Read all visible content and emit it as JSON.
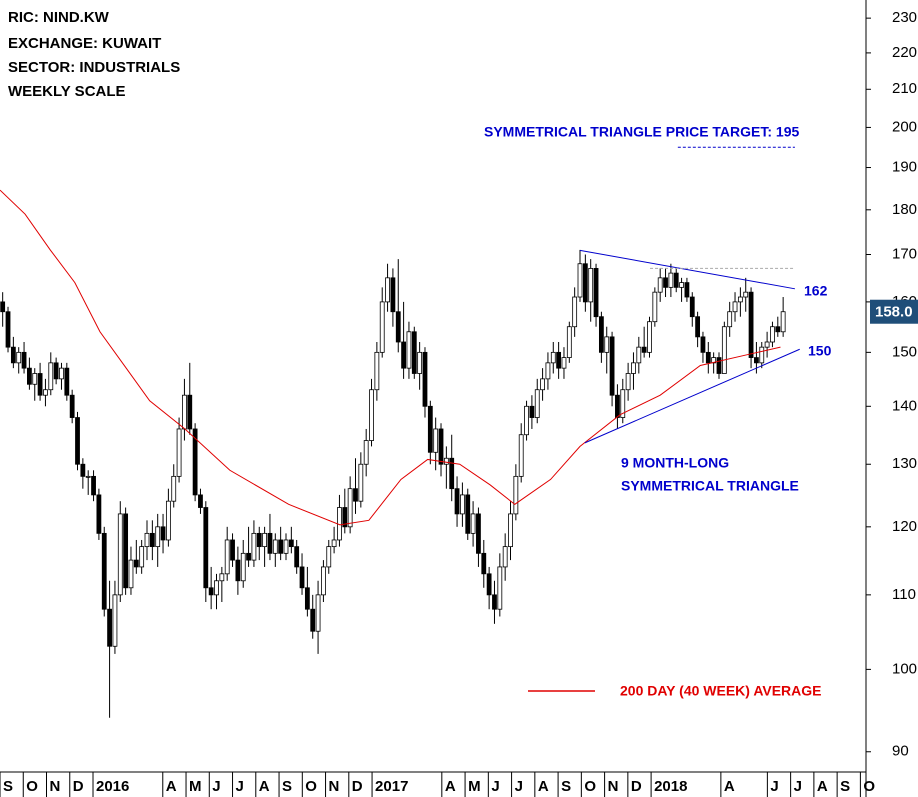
{
  "chart_data": {
    "type": "candlestick",
    "info": [
      "RIC: NIND.KW",
      "EXCHANGE: KUWAIT",
      "SECTOR: INDUSTRIALS",
      "WEEKLY SCALE"
    ],
    "target_text": "SYMMETRICAL TRIANGLE PRICE TARGET: 195",
    "pattern_text": [
      "9 MONTH-LONG",
      "SYMMETRICAL TRIANGLE"
    ],
    "upper_label": 162,
    "lower_label": 150,
    "last_price": {
      "value": 158,
      "label": "158.0"
    },
    "log_scale": true,
    "color": "#000000",
    "ylim": [
      87.7,
      235.4
    ],
    "yticks": [
      90,
      100,
      110,
      120,
      130,
      140,
      150,
      160,
      170,
      180,
      190,
      200,
      210,
      220,
      230
    ],
    "xlim": [
      0,
      162
    ],
    "xticks": [
      {
        "value": 0,
        "label": "S"
      },
      {
        "value": 4.35,
        "label": "O"
      },
      {
        "value": 8.7,
        "label": "N"
      },
      {
        "value": 13.05,
        "label": "D"
      },
      {
        "value": 17.4,
        "label": "2016"
      },
      {
        "value": 30.45,
        "label": "A"
      },
      {
        "value": 34.8,
        "label": "M"
      },
      {
        "value": 39.15,
        "label": "J"
      },
      {
        "value": 43.5,
        "label": "J"
      },
      {
        "value": 47.85,
        "label": "A"
      },
      {
        "value": 52.2,
        "label": "S"
      },
      {
        "value": 56.55,
        "label": "O"
      },
      {
        "value": 60.9,
        "label": "N"
      },
      {
        "value": 65.25,
        "label": "D"
      },
      {
        "value": 69.6,
        "label": "2017"
      },
      {
        "value": 82.65,
        "label": "A"
      },
      {
        "value": 87,
        "label": "M"
      },
      {
        "value": 91.35,
        "label": "J"
      },
      {
        "value": 95.7,
        "label": "J"
      },
      {
        "value": 100.05,
        "label": "A"
      },
      {
        "value": 104.4,
        "label": "S"
      },
      {
        "value": 108.75,
        "label": "O"
      },
      {
        "value": 113.1,
        "label": "N"
      },
      {
        "value": 117.45,
        "label": "D"
      },
      {
        "value": 121.8,
        "label": "2018"
      },
      {
        "value": 134.85,
        "label": "A"
      },
      {
        "value": 143.55,
        "label": "J"
      },
      {
        "value": 147.9,
        "label": "J"
      },
      {
        "value": 152.25,
        "label": "A"
      },
      {
        "value": 156.6,
        "label": "S"
      },
      {
        "value": 160.95,
        "label": "O"
      }
    ],
    "open": [
      160,
      158,
      151,
      148,
      150,
      147,
      144,
      146,
      142,
      143,
      148,
      145,
      147,
      142,
      138,
      130,
      128,
      128,
      125,
      119,
      108,
      103,
      110,
      122,
      111,
      115,
      114,
      117,
      119,
      117,
      120,
      118,
      124,
      128,
      136,
      142,
      136,
      125,
      123,
      111,
      110,
      112,
      113,
      118,
      115,
      112,
      116,
      115,
      119,
      117,
      119,
      116,
      118,
      116,
      118,
      117,
      114,
      111,
      108,
      105,
      110,
      114,
      117,
      118,
      123,
      120,
      126,
      124,
      130,
      134,
      143,
      150,
      160,
      165,
      158,
      152,
      147,
      154,
      146,
      150,
      140,
      132,
      136,
      130,
      131,
      126,
      122,
      125,
      119,
      122,
      116,
      113,
      110,
      108,
      114,
      117,
      122,
      128,
      135,
      140,
      138,
      143,
      145,
      148,
      150,
      147,
      149,
      155,
      161,
      168,
      160,
      167,
      157,
      150,
      153,
      142,
      138,
      143,
      146,
      148,
      151,
      150,
      156,
      162,
      165,
      163,
      166,
      163,
      164,
      161,
      157,
      153,
      150,
      148,
      149,
      146,
      155,
      158,
      160,
      161,
      162,
      149,
      148,
      151,
      152,
      155,
      154
    ],
    "high": [
      162,
      159,
      153,
      151,
      152,
      149,
      147,
      148,
      145,
      150,
      149,
      148,
      148,
      143,
      139,
      131,
      129,
      129,
      126,
      120,
      112,
      112,
      124,
      123,
      117,
      118,
      118,
      121,
      121,
      122,
      122,
      126,
      130,
      138,
      145,
      148,
      137,
      126,
      124,
      114,
      113,
      114,
      120,
      119,
      117,
      118,
      120,
      121,
      120,
      120,
      122,
      119,
      120,
      119,
      120,
      118,
      116,
      114,
      110,
      112,
      115,
      118,
      120,
      125,
      126,
      128,
      131,
      132,
      136,
      145,
      152,
      163,
      168,
      167,
      169,
      160,
      156,
      155,
      152,
      151,
      141,
      138,
      137,
      133,
      135,
      128,
      127,
      126,
      124,
      123,
      118,
      114,
      112,
      116,
      119,
      124,
      130,
      137,
      141,
      142,
      145,
      147,
      150,
      152,
      152,
      151,
      156,
      163,
      171,
      170,
      169,
      168,
      158,
      155,
      154,
      144,
      145,
      148,
      150,
      153,
      155,
      157,
      163,
      167,
      167,
      168,
      167,
      165,
      165,
      162,
      158,
      154,
      152,
      150,
      150,
      156,
      160,
      162,
      163,
      165,
      163,
      152,
      152,
      154,
      156,
      157,
      161
    ],
    "low": [
      155,
      150,
      147,
      146,
      146,
      143,
      141,
      141,
      140,
      142,
      144,
      143,
      141,
      137,
      129,
      126,
      125,
      124,
      118,
      107,
      94,
      102,
      109,
      110,
      110,
      113,
      113,
      115,
      115,
      114,
      116,
      117,
      123,
      127,
      134,
      135,
      124,
      122,
      109,
      108,
      108,
      109,
      112,
      114,
      110,
      111,
      114,
      114,
      115,
      114,
      115,
      114,
      115,
      115,
      116,
      113,
      110,
      107,
      104,
      102,
      109,
      113,
      116,
      117,
      119,
      119,
      122,
      123,
      128,
      133,
      141,
      149,
      158,
      155,
      150,
      145,
      145,
      145,
      143,
      138,
      130,
      129,
      128,
      126,
      124,
      120,
      120,
      118,
      117,
      114,
      111,
      108,
      106,
      107,
      112,
      115,
      121,
      127,
      134,
      136,
      137,
      141,
      143,
      146,
      145,
      145,
      148,
      153,
      160,
      158,
      156,
      155,
      148,
      146,
      140,
      136,
      137,
      141,
      143,
      146,
      149,
      149,
      155,
      160,
      161,
      161,
      162,
      160,
      160,
      155,
      151,
      148,
      146,
      146,
      145,
      146,
      153,
      156,
      157,
      158,
      147,
      146,
      147,
      149,
      151,
      153,
      153
    ],
    "close": [
      158,
      151,
      148,
      150,
      147,
      144,
      146,
      142,
      143,
      148,
      145,
      147,
      142,
      138,
      130,
      128,
      128,
      125,
      119,
      108,
      103,
      110,
      122,
      111,
      115,
      114,
      117,
      119,
      117,
      120,
      118,
      124,
      128,
      136,
      142,
      136,
      125,
      123,
      111,
      110,
      112,
      113,
      118,
      115,
      112,
      116,
      115,
      119,
      117,
      119,
      116,
      118,
      116,
      118,
      117,
      114,
      111,
      108,
      105,
      110,
      114,
      117,
      118,
      123,
      120,
      126,
      124,
      130,
      134,
      143,
      150,
      160,
      165,
      158,
      152,
      147,
      154,
      146,
      150,
      140,
      132,
      136,
      130,
      131,
      126,
      122,
      125,
      119,
      122,
      116,
      113,
      110,
      108,
      114,
      117,
      122,
      128,
      135,
      140,
      138,
      143,
      145,
      148,
      150,
      147,
      149,
      155,
      161,
      168,
      160,
      167,
      157,
      150,
      153,
      142,
      138,
      143,
      146,
      148,
      151,
      150,
      156,
      162,
      165,
      163,
      166,
      163,
      164,
      161,
      157,
      153,
      150,
      148,
      149,
      146,
      155,
      158,
      160,
      161,
      162,
      149,
      148,
      151,
      152,
      155,
      154,
      158
    ],
    "series": [
      {
        "name": "200 DAY (40 WEEK) AVERAGE",
        "color": "#e00000",
        "x": [
          0,
          4.7,
          9.4,
          14,
          18.7,
          28,
          34.6,
          43,
          54,
          63.6,
          69,
          75,
          80,
          86,
          91.7,
          96.3,
          103,
          108.5,
          116,
          123.5,
          131,
          140,
          146
        ],
        "values": [
          184.6,
          179,
          171,
          164,
          154,
          141,
          136,
          129,
          123.5,
          120.3,
          121,
          127.5,
          130.8,
          130,
          126.6,
          123.5,
          127.5,
          133,
          138.5,
          142,
          147.5,
          149.6,
          151
        ]
      }
    ],
    "trendlines": [
      {
        "x": [
          108.5,
          148.7
        ],
        "values": [
          170.9,
          162.7
        ],
        "color": "#0000cc",
        "dashed": false
      },
      {
        "x": [
          109.4,
          149.6
        ],
        "values": [
          133.6,
          150.6
        ],
        "color": "#0000cc",
        "dashed": false
      },
      {
        "x": [
          121.6,
          148.7
        ],
        "values": [
          167,
          167
        ],
        "color": "#aaaaaa",
        "dashed": true
      },
      {
        "x": [
          126.8,
          148.7
        ],
        "values": [
          195,
          195
        ],
        "color": "#0000cc",
        "dashed": true
      }
    ]
  }
}
